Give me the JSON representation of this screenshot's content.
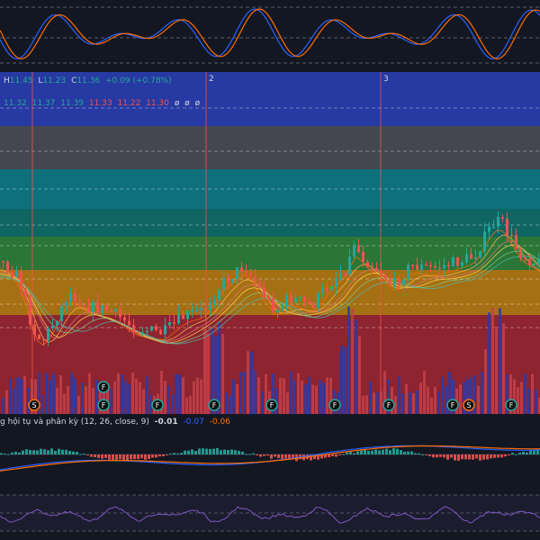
{
  "ohlc_legend": {
    "h_label": "H",
    "h_value": "11.45",
    "l_label": "L",
    "l_value": "11.23",
    "c_label": "C",
    "c_value": "11.36",
    "change": "+0.09 (+0.78%)"
  },
  "ma_legend": {
    "values": [
      "11.32",
      "11.37",
      "11.39",
      "11.33",
      "11.22",
      "11.30"
    ],
    "empty": [
      "ø",
      "ø",
      "ø"
    ]
  },
  "period_markers": [
    "2",
    "3"
  ],
  "macd_legend": {
    "title": "g hội tụ và phân kỳ (12, 26, close, 9)",
    "values": [
      "-0.01",
      "-0.07",
      "-0.06"
    ]
  },
  "colors": {
    "background": "#131722",
    "up": "#26a69a",
    "down": "#ef5350",
    "vol_up": "#2a3aa8",
    "vol_down": "#c2414a",
    "macd_line": "#2962ff",
    "signal_line": "#ff6d00",
    "stoch_k": "#2962ff",
    "stoch_d": "#ff6d00",
    "rsi": "#7e57c2",
    "legend_green": "#26a69a",
    "legend_red": "#ef5350",
    "legend_blue": "#2962ff",
    "legend_orange": "#ff6d00",
    "legend_text": "#d1d4dc"
  },
  "chart_data": [
    {
      "type": "candlestick",
      "panel": "price",
      "bands": [
        {
          "color": "#2a3db0"
        },
        {
          "color": "#4a4c55"
        },
        {
          "color": "#0d7a86"
        },
        {
          "color": "#0f6e68"
        },
        {
          "color": "#2f7f3a"
        },
        {
          "color": "#b67a12"
        },
        {
          "color": "#9c2631"
        }
      ],
      "events": [
        {
          "label": "S",
          "kind": "sell"
        },
        {
          "label": "F",
          "kind": "f"
        },
        {
          "label": "F",
          "kind": "f"
        },
        {
          "label": "F",
          "kind": "f"
        },
        {
          "label": "F",
          "kind": "f"
        },
        {
          "label": "F",
          "kind": "f"
        },
        {
          "label": "F",
          "kind": "f"
        },
        {
          "label": "F",
          "kind": "f"
        },
        {
          "label": "F",
          "kind": "f"
        },
        {
          "label": "S",
          "kind": "sell"
        },
        {
          "label": "F",
          "kind": "f"
        }
      ]
    },
    {
      "type": "bar",
      "panel": "macd_histogram"
    },
    {
      "type": "line",
      "panel": "stochastic",
      "series": [
        {
          "color": "#2962ff"
        },
        {
          "color": "#ff6d00"
        }
      ]
    },
    {
      "type": "line",
      "panel": "rsi",
      "series": [
        {
          "color": "#7e57c2"
        }
      ]
    }
  ]
}
